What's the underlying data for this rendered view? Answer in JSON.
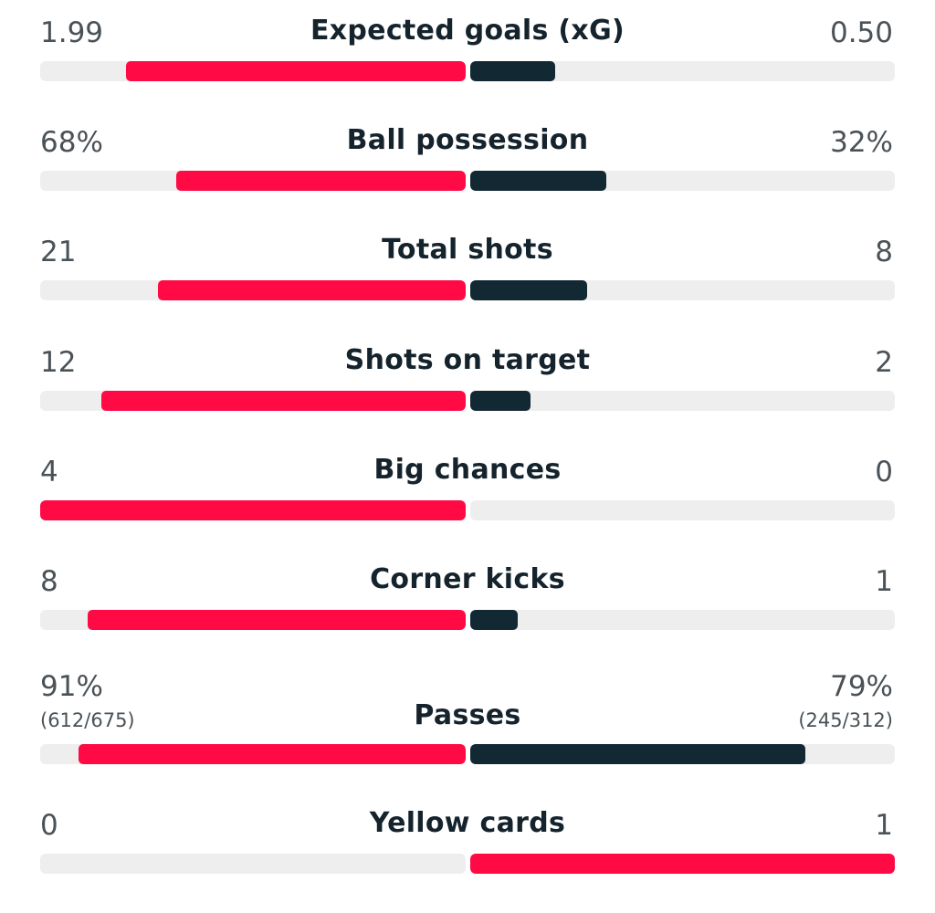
{
  "colors": {
    "leading": "#ff0a45",
    "trailing": "#122832",
    "track": "#eeeeee"
  },
  "chart_data": {
    "type": "bar",
    "stats": [
      {
        "label": "Expected goals (xG)",
        "home": {
          "value": 1.99,
          "text": "1.99"
        },
        "away": {
          "value": 0.5,
          "text": "0.50"
        }
      },
      {
        "label": "Ball possession",
        "home": {
          "value": 68,
          "text": "68%"
        },
        "away": {
          "value": 32,
          "text": "32%"
        }
      },
      {
        "label": "Total shots",
        "home": {
          "value": 21,
          "text": "21"
        },
        "away": {
          "value": 8,
          "text": "8"
        }
      },
      {
        "label": "Shots on target",
        "home": {
          "value": 12,
          "text": "12"
        },
        "away": {
          "value": 2,
          "text": "2"
        }
      },
      {
        "label": "Big chances",
        "home": {
          "value": 4,
          "text": "4"
        },
        "away": {
          "value": 0,
          "text": "0"
        }
      },
      {
        "label": "Corner kicks",
        "home": {
          "value": 8,
          "text": "8"
        },
        "away": {
          "value": 1,
          "text": "1"
        }
      },
      {
        "label": "Passes",
        "home": {
          "value": 91,
          "text": "91%",
          "sub": "(612/675)"
        },
        "away": {
          "value": 79,
          "text": "79%",
          "sub": "(245/312)"
        }
      },
      {
        "label": "Yellow cards",
        "home": {
          "value": 0,
          "text": "0"
        },
        "away": {
          "value": 1,
          "text": "1"
        }
      }
    ]
  }
}
